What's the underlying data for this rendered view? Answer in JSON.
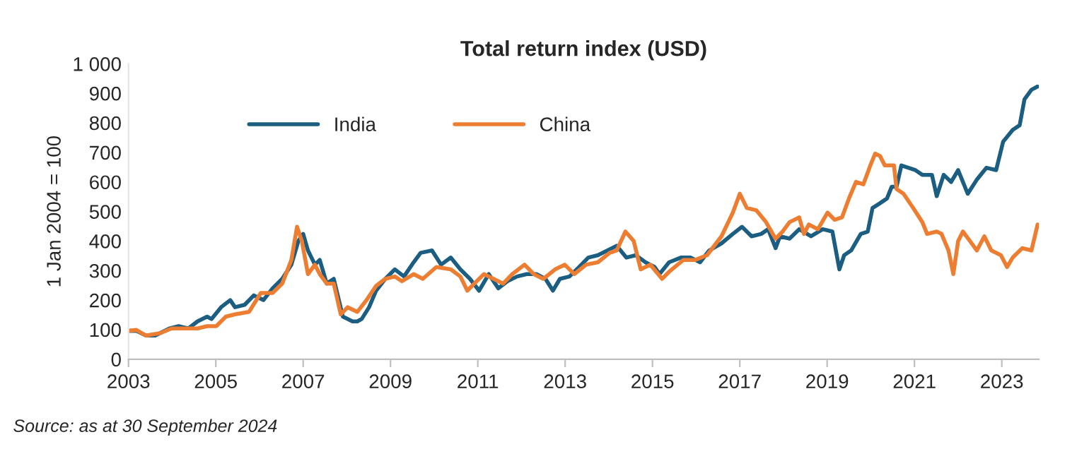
{
  "chart_data": {
    "type": "line",
    "title": "Total return index (USD)",
    "ylabel": "1 Jan 2004 = 100",
    "xlim": [
      2003,
      2023.85
    ],
    "xticks": [
      2003,
      2005,
      2007,
      2009,
      2011,
      2013,
      2015,
      2017,
      2019,
      2021,
      2023
    ],
    "ylim": [
      0,
      1000
    ],
    "yticks": [
      0,
      100,
      200,
      300,
      400,
      500,
      600,
      700,
      800,
      900,
      {
        "value": 1000,
        "label": "1 000"
      }
    ],
    "grid": false,
    "legend": "top",
    "annotations": [
      "Source: as at 30 September 2024"
    ],
    "series": [
      {
        "name": "India",
        "color": "#1b5e82",
        "x": [
          2003.0,
          2003.18,
          2003.4,
          2003.61,
          2003.94,
          2004.15,
          2004.37,
          2004.58,
          2004.8,
          2004.9,
          2005.12,
          2005.33,
          2005.44,
          2005.66,
          2005.87,
          2006.09,
          2006.3,
          2006.52,
          2006.73,
          2006.89,
          2007.0,
          2007.11,
          2007.27,
          2007.38,
          2007.54,
          2007.7,
          2007.91,
          2008.13,
          2008.24,
          2008.34,
          2008.51,
          2008.67,
          2008.88,
          2009.1,
          2009.31,
          2009.53,
          2009.69,
          2009.95,
          2010.16,
          2010.38,
          2010.6,
          2010.82,
          2011.03,
          2011.25,
          2011.47,
          2011.68,
          2011.9,
          2012.12,
          2012.34,
          2012.55,
          2012.72,
          2012.88,
          2013.1,
          2013.32,
          2013.53,
          2013.75,
          2013.97,
          2014.18,
          2014.4,
          2014.62,
          2014.84,
          2015.05,
          2015.16,
          2015.38,
          2015.65,
          2015.87,
          2016.09,
          2016.3,
          2016.58,
          2016.84,
          2017.05,
          2017.27,
          2017.49,
          2017.65,
          2017.82,
          2017.92,
          2018.14,
          2018.36,
          2018.63,
          2018.9,
          2019.12,
          2019.28,
          2019.39,
          2019.55,
          2019.77,
          2019.93,
          2020.04,
          2020.21,
          2020.37,
          2020.48,
          2020.59,
          2020.7,
          2020.86,
          2021.02,
          2021.18,
          2021.4,
          2021.51,
          2021.67,
          2021.84,
          2022.0,
          2022.22,
          2022.43,
          2022.65,
          2022.87,
          2023.03,
          2023.25,
          2023.41,
          2023.52,
          2023.68,
          2023.82
        ],
        "values": [
          96,
          96,
          80,
          80,
          104,
          112,
          104,
          128,
          144,
          136,
          176,
          200,
          176,
          184,
          216,
          200,
          240,
          272,
          320,
          400,
          424,
          368,
          320,
          336,
          256,
          272,
          144,
          128,
          128,
          136,
          176,
          232,
          272,
          304,
          280,
          328,
          360,
          368,
          320,
          344,
          304,
          272,
          232,
          288,
          240,
          264,
          280,
          288,
          288,
          272,
          232,
          272,
          280,
          312,
          344,
          352,
          368,
          384,
          344,
          352,
          328,
          312,
          288,
          328,
          344,
          344,
          328,
          368,
          392,
          424,
          448,
          416,
          424,
          440,
          376,
          416,
          408,
          440,
          416,
          440,
          432,
          304,
          352,
          368,
          424,
          432,
          512,
          528,
          544,
          584,
          584,
          656,
          648,
          640,
          624,
          624,
          552,
          624,
          600,
          640,
          560,
          608,
          648,
          640,
          736,
          776,
          792,
          880,
          912,
          923
        ]
      },
      {
        "name": "China",
        "color": "#ed7d31",
        "x": [
          2003.0,
          2003.18,
          2003.4,
          2003.72,
          2003.99,
          2004.26,
          2004.58,
          2004.8,
          2005.01,
          2005.23,
          2005.44,
          2005.76,
          2006.03,
          2006.3,
          2006.52,
          2006.73,
          2006.86,
          2006.97,
          2007.11,
          2007.27,
          2007.38,
          2007.54,
          2007.7,
          2007.86,
          2008.02,
          2008.24,
          2008.45,
          2008.67,
          2008.88,
          2009.1,
          2009.26,
          2009.53,
          2009.74,
          2010.05,
          2010.38,
          2010.6,
          2010.76,
          2010.92,
          2011.14,
          2011.36,
          2011.58,
          2011.79,
          2012.07,
          2012.28,
          2012.5,
          2012.77,
          2012.99,
          2013.21,
          2013.48,
          2013.75,
          2014.02,
          2014.18,
          2014.38,
          2014.57,
          2014.73,
          2014.95,
          2015.22,
          2015.38,
          2015.71,
          2015.98,
          2016.25,
          2016.58,
          2016.84,
          2017.0,
          2017.16,
          2017.38,
          2017.6,
          2017.82,
          2017.98,
          2018.14,
          2018.36,
          2018.47,
          2018.58,
          2018.79,
          2019.01,
          2019.17,
          2019.34,
          2019.5,
          2019.66,
          2019.83,
          2019.99,
          2020.1,
          2020.21,
          2020.32,
          2020.53,
          2020.59,
          2020.75,
          2020.97,
          2021.18,
          2021.29,
          2021.51,
          2021.62,
          2021.78,
          2021.89,
          2022.0,
          2022.11,
          2022.27,
          2022.43,
          2022.6,
          2022.76,
          2022.98,
          2023.12,
          2023.25,
          2023.47,
          2023.68,
          2023.82
        ],
        "values": [
          96,
          99,
          80,
          88,
          104,
          104,
          104,
          112,
          112,
          144,
          152,
          160,
          224,
          224,
          256,
          336,
          448,
          400,
          288,
          320,
          288,
          256,
          256,
          152,
          176,
          160,
          200,
          248,
          272,
          280,
          264,
          288,
          272,
          312,
          304,
          280,
          232,
          256,
          288,
          272,
          256,
          288,
          320,
          288,
          272,
          304,
          320,
          288,
          320,
          328,
          360,
          368,
          432,
          400,
          304,
          320,
          272,
          296,
          336,
          336,
          352,
          416,
          496,
          560,
          512,
          504,
          464,
          408,
          432,
          464,
          480,
          424,
          456,
          440,
          496,
          472,
          480,
          544,
          600,
          592,
          656,
          696,
          688,
          656,
          656,
          576,
          560,
          512,
          464,
          424,
          432,
          424,
          368,
          288,
          400,
          432,
          400,
          368,
          416,
          368,
          352,
          312,
          344,
          376,
          368,
          456
        ]
      }
    ]
  }
}
